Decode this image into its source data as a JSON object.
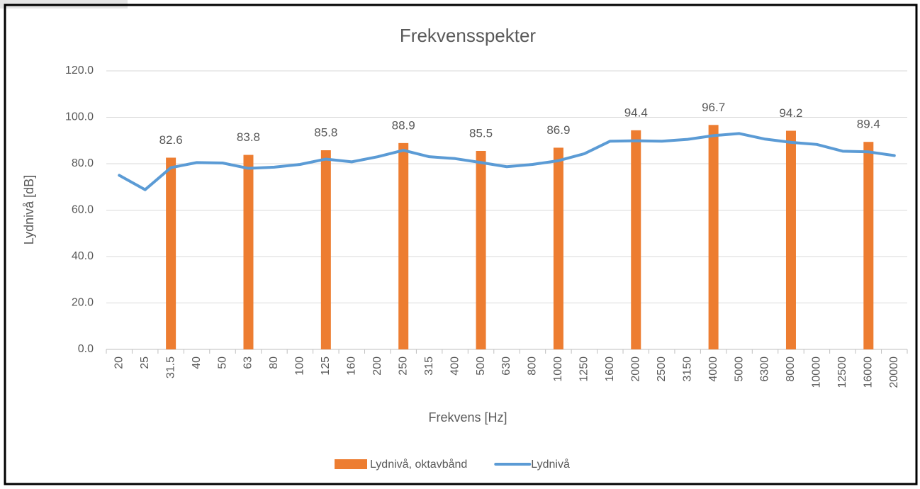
{
  "chart_data": {
    "type": "bar_line",
    "title": "Frekvensspekter",
    "x_label": "Frekvens [Hz]",
    "y_label": "Lydnivå [dB]",
    "categories": [
      "20",
      "25",
      "31.5",
      "40",
      "50",
      "63",
      "80",
      "100",
      "125",
      "160",
      "200",
      "250",
      "315",
      "400",
      "500",
      "630",
      "800",
      "1000",
      "1250",
      "1600",
      "2000",
      "2500",
      "3150",
      "4000",
      "5000",
      "6300",
      "8000",
      "10000",
      "12500",
      "16000",
      "20000"
    ],
    "series": [
      {
        "name": "Lydnivå, oktavbånd",
        "type": "bar",
        "color": "#ed7d31",
        "values": [
          null,
          null,
          82.6,
          null,
          null,
          83.8,
          null,
          null,
          85.8,
          null,
          null,
          88.9,
          null,
          null,
          85.5,
          null,
          null,
          86.9,
          null,
          null,
          94.4,
          null,
          null,
          96.7,
          null,
          null,
          94.2,
          null,
          null,
          89.4,
          null
        ]
      },
      {
        "name": "Lydnivå",
        "type": "line",
        "color": "#5b9bd5",
        "values": [
          75,
          68.8,
          78.3,
          80.5,
          80.3,
          78,
          78.5,
          79.7,
          82,
          80.8,
          83,
          85.8,
          83,
          82.2,
          80.5,
          78.7,
          79.7,
          81.3,
          84.3,
          89.7,
          89.9,
          89.7,
          90.5,
          92.1,
          93,
          90.6,
          89.2,
          88.3,
          85.4,
          85.1,
          83.5
        ]
      }
    ],
    "ylim": [
      0,
      120
    ],
    "yticks": [
      {
        "value": 0,
        "label": "0.0"
      },
      {
        "value": 20,
        "label": "20.0"
      },
      {
        "value": 40,
        "label": "40.0"
      },
      {
        "value": 60,
        "label": "60.0"
      },
      {
        "value": 80,
        "label": "80.0"
      },
      {
        "value": 100,
        "label": "100.0"
      },
      {
        "value": 120,
        "label": "120.0"
      }
    ],
    "grid": true,
    "legend": "bottom"
  }
}
